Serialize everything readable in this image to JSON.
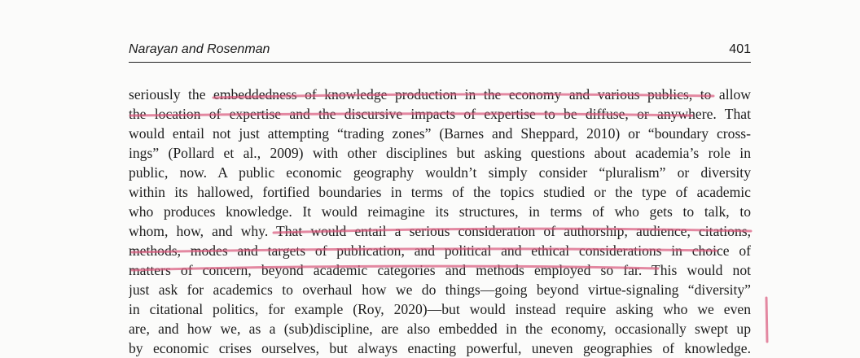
{
  "header": {
    "author": "Narayan and Rosenman",
    "page_number": "401"
  },
  "lines": [
    "seriously the embeddedness of knowledge production in the economy and various publics, to allow",
    "the location of expertise and the discursive impacts of expertise to be diffuse, or anywhere. That",
    "would entail not just attempting “trading zones” (Barnes and Sheppard, 2010) or “boundary cross-",
    "ings” (Pollard et al., 2009) with other disciplines but asking questions about academia’s role in",
    "public, now. A public economic geography wouldn’t simply consider “pluralism” or diversity",
    "within its hallowed, fortified boundaries in terms of the topics studied or the type of academic",
    "who produces knowledge. It would reimagine its structures, in terms of who gets to talk, to",
    "whom, how, and why. That would entail a serious consideration of authorship, audience, citations,",
    "methods, modes and targets of publication, and political and ethical considerations in choice of",
    "matters of concern, beyond academic categories and methods employed so far. This would not",
    "just ask for academics to overhaul how we do things—going beyond virtue-signaling “diversity”",
    "in citational politics, for example (Roy, 2020)—but would instead require asking who we even",
    "are, and how we, as a (sub)discipline, are also embedded in the economy, occasionally swept up",
    "by economic crises ourselves, but always enacting powerful, uneven geographies of knowledge."
  ],
  "colors": {
    "ink": "#1d1d1d",
    "highlighter": "#d9577a"
  }
}
